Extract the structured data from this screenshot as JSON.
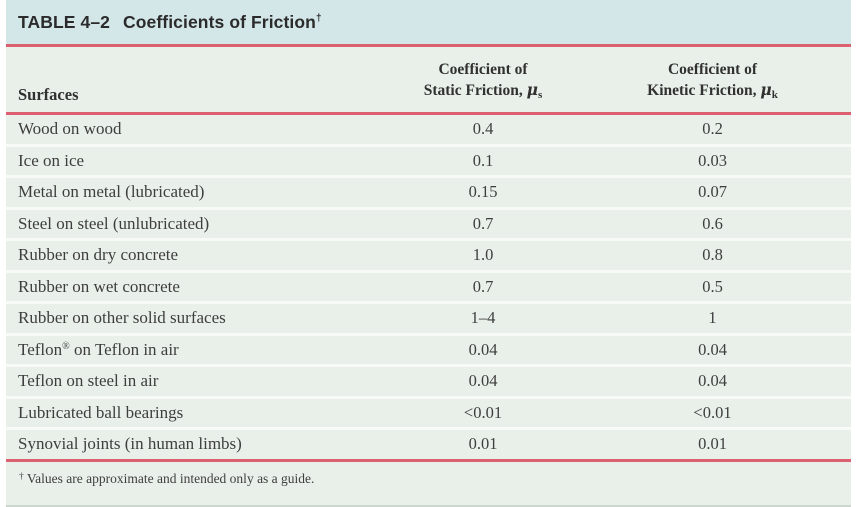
{
  "title": {
    "number": "TABLE 4–2",
    "text": "Coefficients of Friction",
    "sup": "†"
  },
  "table": {
    "headers": {
      "surfaces": "Surfaces",
      "static": {
        "line1": "Coefficient of",
        "line2": "Static Friction, ",
        "mu": "μ",
        "sub": "s"
      },
      "kinetic": {
        "line1": "Coefficient of",
        "line2": "Kinetic Friction, ",
        "mu": "μ",
        "sub": "k"
      }
    },
    "rows": [
      {
        "surface_pre": "Wood on wood",
        "surface_sup": "",
        "surface_post": "",
        "static": "0.4",
        "kinetic": "0.2"
      },
      {
        "surface_pre": "Ice on ice",
        "surface_sup": "",
        "surface_post": "",
        "static": "0.1",
        "kinetic": "0.03"
      },
      {
        "surface_pre": "Metal on metal (lubricated)",
        "surface_sup": "",
        "surface_post": "",
        "static": "0.15",
        "kinetic": "0.07"
      },
      {
        "surface_pre": "Steel on steel (unlubricated)",
        "surface_sup": "",
        "surface_post": "",
        "static": "0.7",
        "kinetic": "0.6"
      },
      {
        "surface_pre": "Rubber on dry concrete",
        "surface_sup": "",
        "surface_post": "",
        "static": "1.0",
        "kinetic": "0.8"
      },
      {
        "surface_pre": "Rubber on wet concrete",
        "surface_sup": "",
        "surface_post": "",
        "static": "0.7",
        "kinetic": "0.5"
      },
      {
        "surface_pre": "Rubber on other solid surfaces",
        "surface_sup": "",
        "surface_post": "",
        "static": "1–4",
        "kinetic": "1"
      },
      {
        "surface_pre": "Teflon",
        "surface_sup": "®",
        "surface_post": " on Teflon in air",
        "static": "0.04",
        "kinetic": "0.04"
      },
      {
        "surface_pre": "Teflon on steel in air",
        "surface_sup": "",
        "surface_post": "",
        "static": "0.04",
        "kinetic": "0.04"
      },
      {
        "surface_pre": "Lubricated ball bearings",
        "surface_sup": "",
        "surface_post": "",
        "static": "<0.01",
        "kinetic": "<0.01"
      },
      {
        "surface_pre": "Synovial joints (in human limbs)",
        "surface_sup": "",
        "surface_post": "",
        "static": "0.01",
        "kinetic": "0.01"
      }
    ]
  },
  "footnote": {
    "sup": "†",
    "text": "Values are approximate and intended only as a guide."
  },
  "colors": {
    "title_bar": "#d3e6e8",
    "row_background": "#e9f0e9",
    "row_separator": "#f7faf6",
    "accent_rule": "#dc6070",
    "bottom_edge": "#ccd6ce",
    "text": "#3e3e3e"
  }
}
